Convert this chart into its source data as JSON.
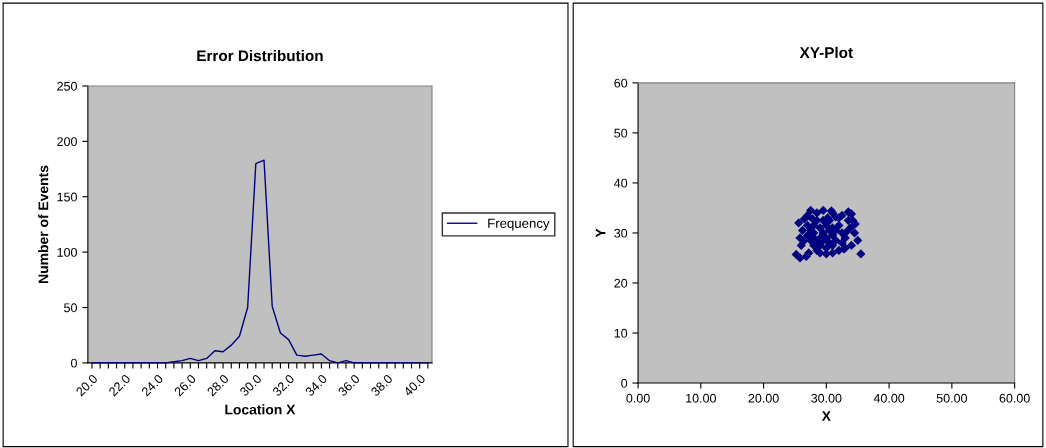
{
  "chart_data": [
    {
      "type": "line",
      "title": "Error Distribution",
      "xlabel": "Location X",
      "ylabel": "Number of Events",
      "categories": [
        "20.0",
        null,
        null,
        null,
        "22.0",
        null,
        null,
        null,
        "24.0",
        null,
        null,
        null,
        "26.0",
        null,
        null,
        null,
        "28.0",
        null,
        null,
        null,
        "30.0",
        null,
        null,
        null,
        "32.0",
        null,
        null,
        null,
        "34.0",
        null,
        null,
        null,
        "36.0",
        null,
        null,
        null,
        "38.0",
        null,
        null,
        null,
        "40.0",
        null
      ],
      "series": [
        {
          "name": "Frequency",
          "color": "#000080",
          "values": [
            0,
            0,
            0,
            0,
            0,
            0,
            0,
            0,
            0,
            0,
            1,
            2,
            4,
            2,
            4,
            11,
            10,
            16,
            24,
            50,
            180,
            183,
            51,
            27,
            21,
            7,
            6,
            7,
            8,
            2,
            0,
            2,
            0,
            0,
            0,
            0,
            0,
            0,
            0,
            0,
            0,
            0
          ]
        }
      ],
      "ylim": [
        0,
        250
      ],
      "yticks": [
        0,
        50,
        100,
        150,
        200,
        250
      ],
      "grid": false,
      "legend": "right",
      "marker": "none",
      "line_style": "solid"
    },
    {
      "type": "scatter",
      "title": "XY-Plot",
      "xlabel": "X",
      "ylabel": "Y",
      "x": [
        25.2,
        25.8,
        26.8,
        27.2,
        26.0,
        25.8,
        26.2,
        25.6,
        26.5,
        27.0,
        27.5,
        28.5,
        29.5,
        30.2,
        31.0,
        31.5,
        32.5,
        33.5,
        34.0,
        34.2,
        33.8,
        34.5,
        35.0,
        35.5,
        34.0,
        33.0,
        32.0,
        31.0,
        30.0,
        29.0,
        28.5,
        28.0,
        27.5,
        27.0,
        27.5,
        28.0,
        28.5,
        29.0,
        29.5,
        30.0,
        30.5,
        31.0,
        31.5,
        32.0,
        32.5,
        33.0,
        32.5,
        29.0,
        28.5,
        30.0,
        30.5,
        29.5,
        31.0,
        31.5,
        29.0,
        30.0,
        27.0,
        28.0,
        33.5,
        32.0,
        30.5,
        29.5,
        28.0,
        31.0,
        32.8,
        26.5,
        27.8,
        30.8,
        33.2,
        34.6
      ],
      "series": [
        {
          "color": "#000080",
          "values": [
            25.7,
            25.0,
            25.3,
            26.0,
            27.5,
            29.0,
            30.5,
            32.0,
            32.8,
            33.5,
            34.5,
            34.0,
            34.5,
            33.0,
            34.0,
            33.2,
            33.5,
            34.2,
            33.8,
            32.5,
            31.0,
            30.0,
            28.5,
            25.8,
            27.5,
            27.0,
            26.5,
            26.0,
            25.8,
            26.0,
            26.5,
            27.5,
            28.5,
            29.5,
            30.5,
            31.5,
            32.5,
            31.0,
            30.0,
            29.0,
            28.0,
            29.5,
            30.5,
            31.5,
            30.0,
            29.0,
            28.0,
            29.0,
            28.0,
            31.5,
            32.5,
            32.5,
            31.0,
            28.5,
            27.5,
            27.0,
            31.5,
            30.0,
            32.5,
            33.0,
            30.5,
            28.5,
            29.0,
            27.5,
            26.8,
            28.5,
            32.8,
            34.4,
            30.2,
            31.8
          ]
        }
      ],
      "xlim": [
        0,
        60
      ],
      "xticks": [
        {
          "value": 0,
          "label": "0.00"
        },
        {
          "value": 10,
          "label": "10.00"
        },
        {
          "value": 20,
          "label": "20.00"
        },
        {
          "value": 30,
          "label": "30.00"
        },
        {
          "value": 40,
          "label": "40.00"
        },
        {
          "value": 50,
          "label": "50.00"
        },
        {
          "value": 60,
          "label": "60.00"
        }
      ],
      "ylim": [
        0,
        60
      ],
      "yticks": [
        0,
        10,
        20,
        30,
        40,
        50,
        60
      ],
      "grid": false,
      "legend": false,
      "marker": "diamond"
    }
  ]
}
